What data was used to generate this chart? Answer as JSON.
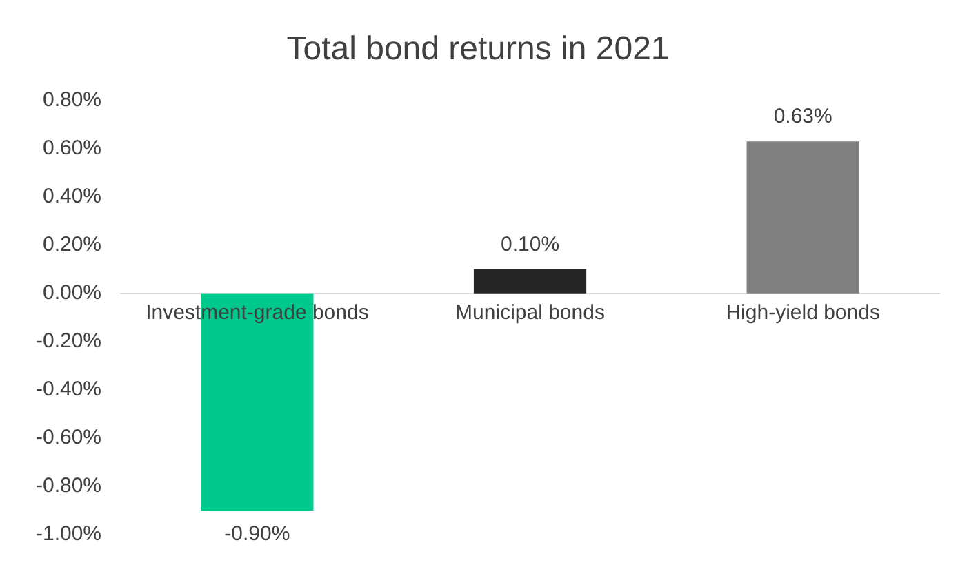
{
  "chart_data": {
    "type": "bar",
    "title": "Total bond returns in 2021",
    "categories": [
      "Investment-grade bonds",
      "Municipal bonds",
      "High-yield bonds"
    ],
    "values": [
      -0.9,
      0.1,
      0.63
    ],
    "colors": [
      "#00c98d",
      "#262626",
      "#808080"
    ],
    "value_labels": [
      "-0.90%",
      "0.10%",
      "0.63%"
    ],
    "ylim": [
      -1,
      0.8
    ],
    "yticks": [
      {
        "value": -1,
        "label": "-1.00%"
      },
      {
        "value": -0.8,
        "label": "-0.80%"
      },
      {
        "value": -0.6,
        "label": "-0.60%"
      },
      {
        "value": -0.4,
        "label": "-0.40%"
      },
      {
        "value": -0.2,
        "label": "-0.20%"
      },
      {
        "value": 0,
        "label": "0.00%"
      },
      {
        "value": 0.2,
        "label": "0.20%"
      },
      {
        "value": 0.4,
        "label": "0.40%"
      },
      {
        "value": 0.6,
        "label": "0.60%"
      },
      {
        "value": 0.8,
        "label": "0.80%"
      }
    ],
    "grid": false,
    "legend": false
  }
}
